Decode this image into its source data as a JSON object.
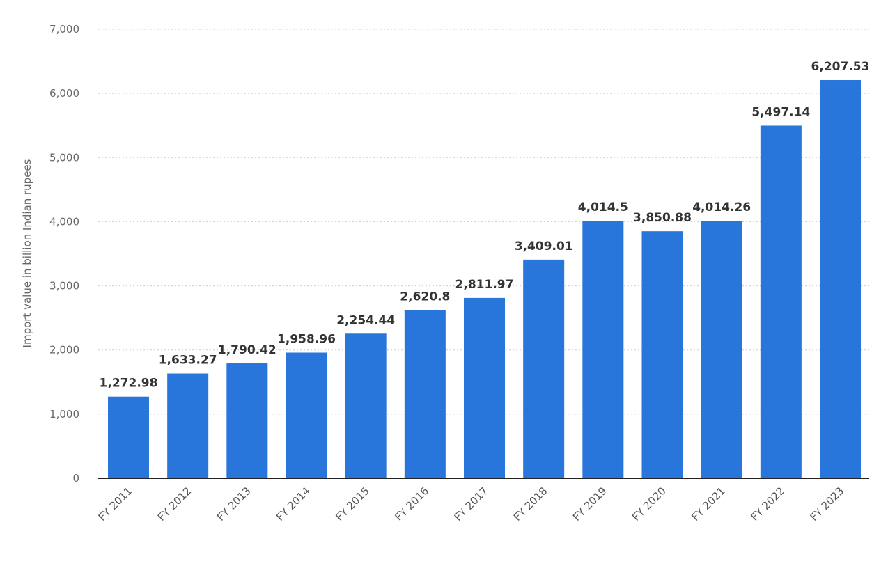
{
  "chart_data": {
    "type": "bar",
    "title": "",
    "xlabel": "",
    "ylabel": "Import value in billion Indian rupees",
    "ylim": [
      0,
      7000
    ],
    "yticks": [
      0,
      1000,
      2000,
      3000,
      4000,
      5000,
      6000,
      7000
    ],
    "ytick_labels": [
      "0",
      "1,000",
      "2,000",
      "3,000",
      "4,000",
      "5,000",
      "6,000",
      "7,000"
    ],
    "grid": true,
    "bar_color": "#2875dc",
    "categories": [
      "FY 2011",
      "FY 2012",
      "FY 2013",
      "FY 2014",
      "FY 2015",
      "FY 2016",
      "FY 2017",
      "FY 2018",
      "FY 2019",
      "FY 2020",
      "FY 2021",
      "FY 2022",
      "FY 2023"
    ],
    "values": [
      1272.98,
      1633.27,
      1790.42,
      1958.96,
      2254.44,
      2620.8,
      2811.97,
      3409.01,
      4014.5,
      3850.88,
      4014.26,
      5497.14,
      6207.53
    ],
    "data_labels": [
      "1,272.98",
      "1,633.27",
      "1,790.42",
      "1,958.96",
      "2,254.44",
      "2,620.8",
      "2,811.97",
      "3,409.01",
      "4,014.5",
      "3,850.88",
      "4,014.26",
      "5,497.14",
      "6,207.53"
    ]
  }
}
